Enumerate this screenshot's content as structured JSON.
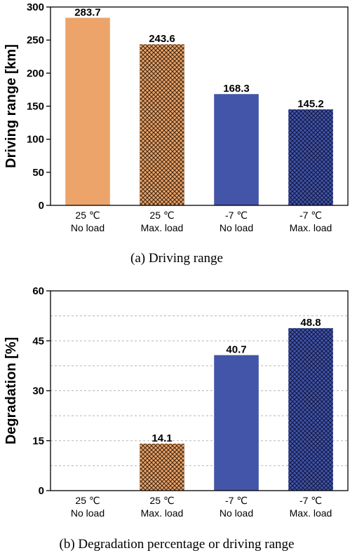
{
  "chart_data": [
    {
      "type": "bar",
      "categories": [
        [
          "25 ℃",
          "No load"
        ],
        [
          "25 ℃",
          "Max. load"
        ],
        [
          "-7 ℃",
          "No load"
        ],
        [
          "-7 ℃",
          "Max. load"
        ]
      ],
      "values": [
        283.7,
        243.6,
        168.3,
        145.2
      ],
      "value_labels": [
        "283.7",
        "243.6",
        "168.3",
        "145.2"
      ],
      "bar_colors": [
        "#ECA46A",
        "#ECA46A",
        "#4355A8",
        "#4355A8"
      ],
      "bar_patterns": [
        "solid",
        "crosshatch",
        "solid",
        "crosshatch"
      ],
      "ylabel": "Driving range [km]",
      "ylim": [
        0,
        300
      ],
      "yticks": [
        0,
        50,
        100,
        150,
        200,
        250,
        300
      ],
      "grid": false,
      "caption": "(a) Driving range"
    },
    {
      "type": "bar",
      "categories": [
        [
          "25 ℃",
          "No load"
        ],
        [
          "25 ℃",
          "Max. load"
        ],
        [
          "-7 ℃",
          "No load"
        ],
        [
          "-7 ℃",
          "Max. load"
        ]
      ],
      "values": [
        null,
        14.1,
        40.7,
        48.8
      ],
      "value_labels": [
        "",
        "14.1",
        "40.7",
        "48.8"
      ],
      "bar_colors": [
        "#ECA46A",
        "#ECA46A",
        "#4355A8",
        "#4355A8"
      ],
      "bar_patterns": [
        "solid",
        "crosshatch",
        "solid",
        "crosshatch"
      ],
      "ylabel": "Degradation [%]",
      "ylim": [
        0,
        60
      ],
      "yticks": [
        0,
        15,
        30,
        45,
        60
      ],
      "grid": true,
      "caption": "(b) Degradation percentage or driving range"
    }
  ]
}
